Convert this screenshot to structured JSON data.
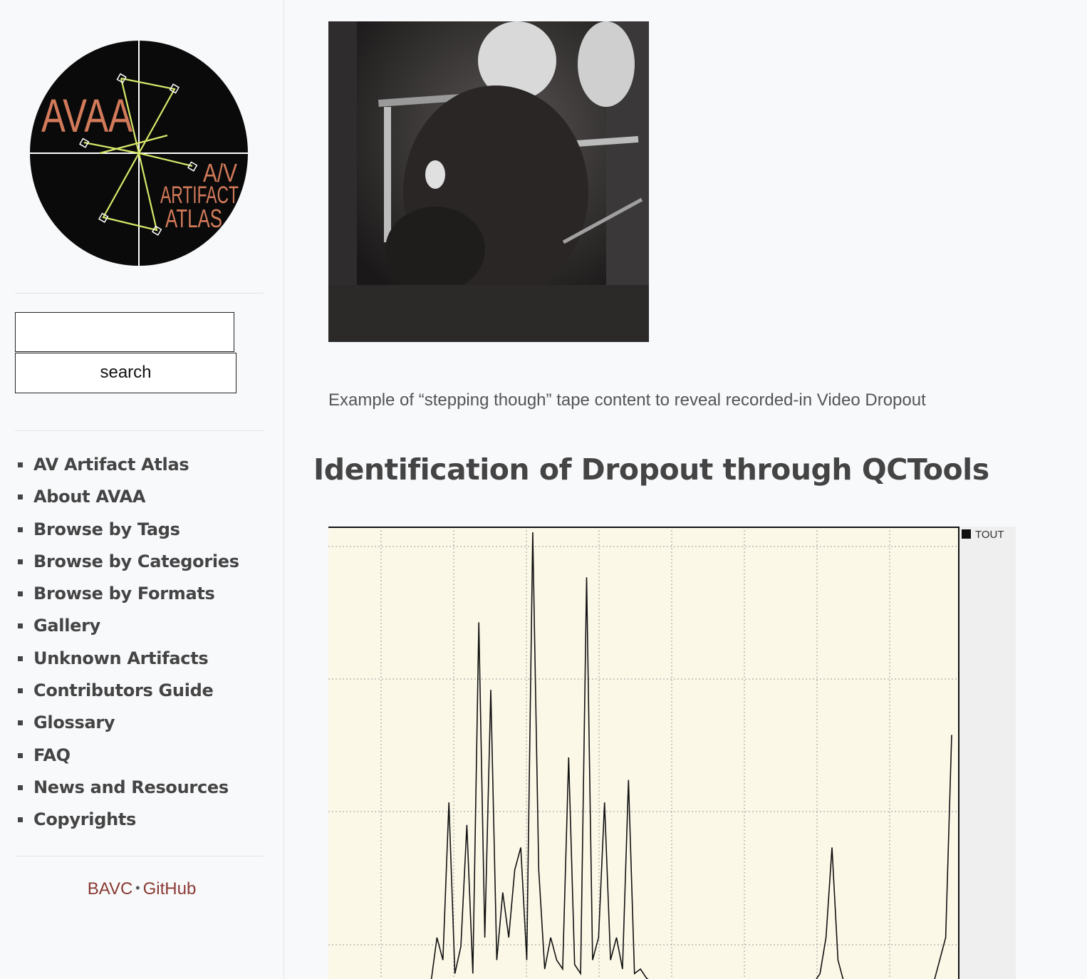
{
  "sidebar": {
    "logo": {
      "title": "AVAA",
      "subtitle_lines": [
        "A/V",
        "ARTIFACT",
        "ATLAS"
      ],
      "colors": {
        "background": "#0a0a0a",
        "text": "#d37a5a",
        "lines": "#d8e86a",
        "axes": "#ffffff"
      }
    },
    "search": {
      "input_value": "",
      "button_label": "search"
    },
    "nav": [
      {
        "label": "AV Artifact Atlas"
      },
      {
        "label": "About AVAA"
      },
      {
        "label": "Browse by Tags"
      },
      {
        "label": "Browse by Categories"
      },
      {
        "label": "Browse by Formats"
      },
      {
        "label": "Gallery"
      },
      {
        "label": "Unknown Artifacts"
      },
      {
        "label": "Contributors Guide"
      },
      {
        "label": "Glossary"
      },
      {
        "label": "FAQ"
      },
      {
        "label": "News and Resources"
      },
      {
        "label": "Copyrights"
      }
    ],
    "footer": {
      "link1": "BAVC",
      "separator": "•",
      "link2": "GitHub",
      "color": "#8a3a32"
    }
  },
  "main": {
    "image": {
      "description_icon": "video-still-image"
    },
    "caption": "Example of “stepping though” tape content to reveal recorded-in Video Dropout",
    "heading": "Identification of Dropout through QCTools"
  },
  "chart_data": {
    "type": "line",
    "series": [
      {
        "name": "TOUT",
        "values": [
          0,
          0,
          0,
          0,
          0,
          0,
          0,
          0,
          0,
          0,
          0,
          0.1,
          0.05,
          0.4,
          0.02,
          0.08,
          0.35,
          0.02,
          0.8,
          0.1,
          0.65,
          0.05,
          0.2,
          0.1,
          0.25,
          0.3,
          0.05,
          1.0,
          0.25,
          0.03,
          0.1,
          0.05,
          0.03,
          0.5,
          0.04,
          0.02,
          0.9,
          0.05,
          0.1,
          0.4,
          0.05,
          0.1,
          0.03,
          0.45,
          0.02,
          0.03,
          0.01,
          0,
          0,
          0,
          0,
          0,
          0,
          0,
          0,
          0,
          0,
          0,
          0,
          0,
          0,
          0,
          0,
          0,
          0,
          0,
          0,
          0,
          0,
          0,
          0,
          0,
          0,
          0,
          0,
          0.02,
          0.1,
          0.3,
          0.05,
          0,
          0,
          0,
          0,
          0,
          0,
          0,
          0,
          0,
          0,
          0,
          0,
          0,
          0,
          0,
          0,
          0.05,
          0.1,
          0.55
        ]
      }
    ],
    "grid": true,
    "legend": "top-right",
    "colors": {
      "plot_bg": "#fcf8e8",
      "line": "#111111",
      "grid": "#9a9a9a",
      "legend_bg": "#efefef"
    }
  }
}
